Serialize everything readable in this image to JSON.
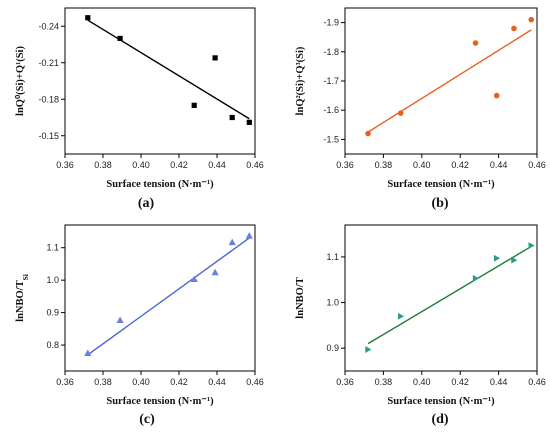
{
  "chart_data": [
    {
      "type": "scatter",
      "panel_label": "(a)",
      "xlabel": "Surface tension (N·m⁻¹)",
      "ylabel": "lnQ⁰(Si)+Q¹(Si)",
      "xlim": [
        0.36,
        0.46
      ],
      "ylim": [
        -0.135,
        -0.255
      ],
      "xticks": [
        "0.36",
        "0.38",
        "0.40",
        "0.42",
        "0.44",
        "0.46"
      ],
      "yticks": [
        "-0.24",
        "-0.21",
        "-0.18",
        "-0.15"
      ],
      "xtick_values": [
        0.36,
        0.38,
        0.4,
        0.42,
        0.44,
        0.46
      ],
      "ytick_values": [
        -0.24,
        -0.21,
        -0.18,
        -0.15
      ],
      "marker": "square",
      "color": "#000000",
      "line_color": "#000000",
      "x": [
        0.372,
        0.389,
        0.428,
        0.439,
        0.448,
        0.457
      ],
      "y": [
        -0.247,
        -0.23,
        -0.175,
        -0.214,
        -0.165,
        -0.161
      ],
      "fit": {
        "x": [
          0.372,
          0.457
        ],
        "y": [
          -0.245,
          -0.164
        ]
      }
    },
    {
      "type": "scatter",
      "panel_label": "(b)",
      "xlabel": "Surface tension (N·m⁻¹)",
      "ylabel": "lnQ²(Si)+Q³(Si)",
      "xlim": [
        0.36,
        0.46
      ],
      "ylim": [
        -1.45,
        -1.95
      ],
      "xticks": [
        "0.36",
        "0.38",
        "0.40",
        "0.42",
        "0.44",
        "0.46"
      ],
      "yticks": [
        "-1.9",
        "-1.8",
        "-1.7",
        "-1.6",
        "-1.5"
      ],
      "xtick_values": [
        0.36,
        0.38,
        0.4,
        0.42,
        0.44,
        0.46
      ],
      "ytick_values": [
        -1.9,
        -1.8,
        -1.7,
        -1.6,
        -1.5
      ],
      "marker": "circle",
      "color": "#e8601c",
      "line_color": "#e8601c",
      "x": [
        0.372,
        0.389,
        0.428,
        0.439,
        0.448,
        0.457
      ],
      "y": [
        -1.52,
        -1.59,
        -1.83,
        -1.65,
        -1.88,
        -1.91
      ],
      "fit": {
        "x": [
          0.372,
          0.457
        ],
        "y": [
          -1.525,
          -1.875
        ]
      }
    },
    {
      "type": "scatter",
      "panel_label": "(c)",
      "xlabel": "Surface tension (N·m⁻¹)",
      "ylabel": "lnNBO/T",
      "ylabel_sub": "Si",
      "xlim": [
        0.36,
        0.46
      ],
      "ylim": [
        0.72,
        1.17
      ],
      "xticks": [
        "0.36",
        "0.38",
        "0.40",
        "0.42",
        "0.44",
        "0.46"
      ],
      "yticks": [
        "0.8",
        "0.9",
        "1.0",
        "1.1"
      ],
      "xtick_values": [
        0.36,
        0.38,
        0.4,
        0.42,
        0.44,
        0.46
      ],
      "ytick_values": [
        0.8,
        0.9,
        1.0,
        1.1
      ],
      "marker": "triangle-up",
      "color": "#6a7fd8",
      "line_color": "#4a64d6",
      "x": [
        0.372,
        0.389,
        0.428,
        0.439,
        0.448,
        0.457
      ],
      "y": [
        0.775,
        0.877,
        1.003,
        1.024,
        1.117,
        1.137
      ],
      "fit": {
        "x": [
          0.372,
          0.457
        ],
        "y": [
          0.77,
          1.13
        ]
      }
    },
    {
      "type": "scatter",
      "panel_label": "(d)",
      "xlabel": "Surface  tension (N·m⁻¹)",
      "ylabel": "lnNBO/T",
      "xlim": [
        0.36,
        0.46
      ],
      "ylim": [
        0.85,
        1.17
      ],
      "xticks": [
        "0.36",
        "0.38",
        "0.40",
        "0.42",
        "0.44",
        "0.46"
      ],
      "yticks": [
        "0.9",
        "1.0",
        "1.1"
      ],
      "xtick_values": [
        0.36,
        0.38,
        0.4,
        0.42,
        0.44,
        0.46
      ],
      "ytick_values": [
        0.9,
        1.0,
        1.1
      ],
      "marker": "triangle-right",
      "color": "#2e9a86",
      "line_color": "#1e7a3a",
      "x": [
        0.372,
        0.389,
        0.428,
        0.439,
        0.448,
        0.457
      ],
      "y": [
        0.897,
        0.97,
        1.053,
        1.097,
        1.093,
        1.125
      ],
      "fit": {
        "x": [
          0.372,
          0.457
        ],
        "y": [
          0.91,
          1.123
        ]
      }
    }
  ]
}
